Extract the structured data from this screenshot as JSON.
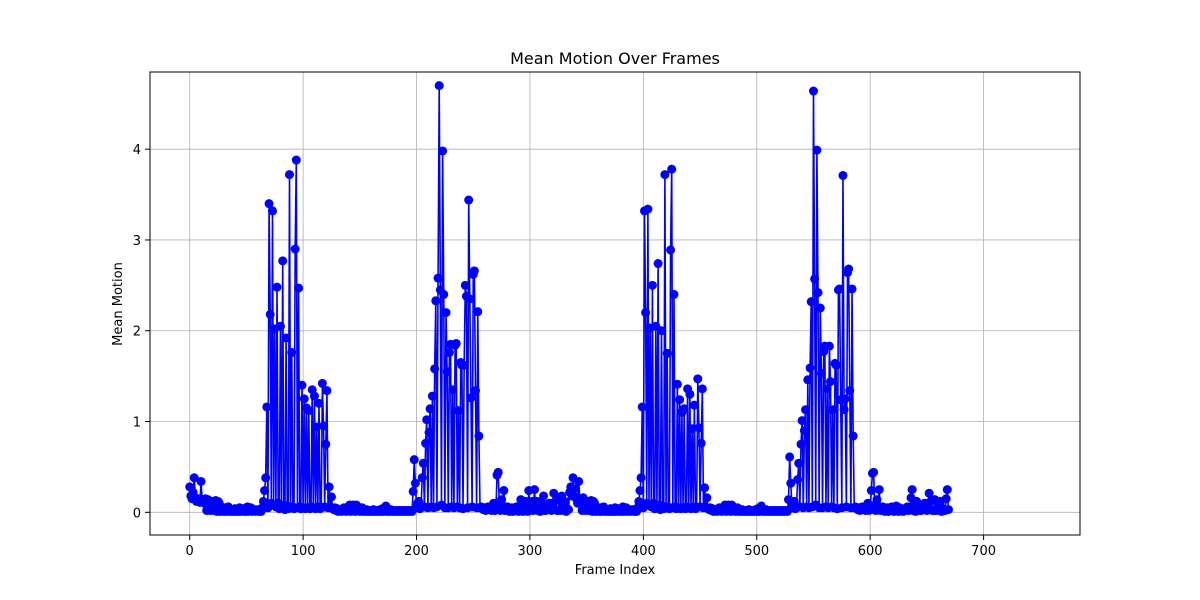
{
  "chart_data": {
    "type": "line",
    "title": "Mean Motion Over Frames",
    "xlabel": "Frame Index",
    "ylabel": "Mean Motion",
    "xlim": [
      -35,
      785
    ],
    "ylim": [
      -0.25,
      4.85
    ],
    "xticks": [
      0,
      100,
      200,
      300,
      400,
      500,
      600,
      700
    ],
    "yticks": [
      0,
      1,
      2,
      3,
      4
    ],
    "grid": true,
    "series_color": "#0000ff",
    "marker": "circle",
    "series": [
      {
        "values": [
          0.28,
          0.18,
          0.15,
          0.22,
          0.38,
          0.16,
          0.12,
          0.15,
          0.13,
          0.11,
          0.34,
          0.14,
          0.12,
          0.1,
          0.15,
          0.02,
          0.14,
          0.13,
          0.02,
          0.1,
          0.12,
          0.02,
          0.11,
          0.13,
          0.01,
          0.12,
          0.1,
          0.01,
          0.02,
          0.03,
          0.01,
          0.05,
          0.01,
          0.02,
          0.06,
          0.01,
          0.02,
          0.01,
          0.03,
          0.01,
          0.04,
          0.01,
          0.02,
          0.01,
          0.05,
          0.01,
          0.02,
          0.04,
          0.01,
          0.02,
          0.01,
          0.06,
          0.01,
          0.02,
          0.05,
          0.01,
          0.02,
          0.03,
          0.01,
          0.02,
          0.03,
          0.01,
          0.02,
          0.01,
          0.05,
          0.12,
          0.24,
          0.38,
          1.16,
          0.05,
          3.4,
          2.18,
          0.1,
          3.32,
          0.08,
          2.02,
          0.06,
          2.48,
          0.1,
          0.04,
          2.05,
          0.05,
          2.77,
          0.08,
          0.03,
          1.92,
          0.07,
          0.04,
          3.72,
          0.05,
          1.76,
          0.06,
          0.04,
          2.9,
          3.88,
          0.05,
          2.47,
          0.06,
          0.04,
          1.4,
          0.05,
          1.25,
          0.04,
          1.15,
          0.05,
          1.12,
          0.04,
          0.06,
          1.35,
          0.05,
          1.28,
          0.04,
          0.94,
          0.06,
          1.2,
          0.04,
          0.05,
          1.42,
          0.95,
          0.06,
          0.75,
          1.34,
          0.05,
          0.28,
          0.06,
          0.17,
          0.04,
          0.03,
          0.05,
          0.02,
          0.04,
          0.01,
          0.03,
          0.02,
          0.01,
          0.02,
          0.05,
          0.02,
          0.01,
          0.04,
          0.02,
          0.08,
          0.01,
          0.03,
          0.08,
          0.02,
          0.01,
          0.08,
          0.02,
          0.04,
          0.01,
          0.02,
          0.05,
          0.01,
          0.02,
          0.01,
          0.03,
          0.01,
          0.02,
          0.01,
          0.02,
          0.01,
          0.03,
          0.01,
          0.02,
          0.01,
          0.02,
          0.01,
          0.03,
          0.01,
          0.04,
          0.01,
          0.02,
          0.07,
          0.01,
          0.02,
          0.01,
          0.03,
          0.01,
          0.02,
          0.01,
          0.02,
          0.01,
          0.02,
          0.01,
          0.02,
          0.01,
          0.02,
          0.01,
          0.02,
          0.01,
          0.02,
          0.01,
          0.02,
          0.01,
          0.02,
          0.01,
          0.23,
          0.58,
          0.32,
          0.05,
          0.1,
          0.12,
          0.04,
          0.05,
          0.38,
          0.54,
          0.06,
          0.76,
          1.02,
          0.05,
          0.88,
          1.14,
          0.06,
          1.28,
          0.05,
          1.58,
          2.33,
          0.06,
          2.58,
          4.7,
          2.45,
          0.08,
          3.98,
          2.4,
          0.05,
          2.2,
          1.55,
          0.05,
          1.76,
          1.85,
          0.06,
          1.35,
          0.05,
          1.84,
          1.86,
          0.06,
          1.12,
          0.05,
          1.65,
          1.62,
          0.04,
          1.62,
          2.5,
          2.38,
          0.05,
          3.44,
          2.35,
          1.26,
          0.06,
          2.62,
          2.66,
          1.34,
          0.05,
          2.21,
          0.84,
          0.05,
          0.06,
          0.04,
          0.03,
          0.05,
          0.02,
          0.04,
          0.06,
          0.03,
          0.05,
          0.02,
          0.04,
          0.1,
          0.02,
          0.03,
          0.41,
          0.44,
          0.08,
          0.02,
          0.14,
          0.05,
          0.24,
          0.02,
          0.05,
          0.06,
          0.03,
          0.01,
          0.02,
          0.05,
          0.01,
          0.04,
          0.02,
          0.06,
          0.03,
          0.01,
          0.02,
          0.14,
          0.03,
          0.01,
          0.05,
          0.12,
          0.02,
          0.01,
          0.24,
          0.02,
          0.04,
          0.12,
          0.02,
          0.25,
          0.06,
          0.12,
          0.02,
          0.08,
          0.01,
          0.12,
          0.05,
          0.18,
          0.02,
          0.02,
          0.07,
          0.04,
          0.1,
          0.05,
          0.02,
          0.1,
          0.21,
          0.03,
          0.13,
          0.02,
          0.02,
          0.14,
          0.02,
          0.18,
          0.05,
          0.02,
          0.12,
          0.01,
          0.04,
          0.03,
          0.22,
          0.28,
          0.18,
          0.38,
          0.26,
          0.17,
          0.15,
          0.1,
          0.34,
          0.14,
          0.12,
          0.02,
          0.16,
          0.13,
          0.02,
          0.1,
          0.12,
          0.02,
          0.11,
          0.13,
          0.01,
          0.12,
          0.1,
          0.01,
          0.02,
          0.03,
          0.01,
          0.05,
          0.01,
          0.02,
          0.06,
          0.01,
          0.02,
          0.01,
          0.03,
          0.01,
          0.04,
          0.01,
          0.02,
          0.01,
          0.05,
          0.01,
          0.02,
          0.04,
          0.01,
          0.02,
          0.01,
          0.06,
          0.01,
          0.02,
          0.05,
          0.01,
          0.02,
          0.03,
          0.01,
          0.02,
          0.03,
          0.01,
          0.02,
          0.01,
          0.05,
          0.12,
          0.24,
          0.38,
          1.16,
          0.05,
          3.32,
          2.2,
          0.1,
          3.34,
          0.08,
          2.03,
          0.06,
          2.5,
          0.1,
          0.04,
          2.05,
          0.05,
          2.74,
          0.08,
          0.03,
          2.0,
          0.07,
          0.04,
          3.72,
          0.05,
          1.75,
          0.06,
          0.04,
          2.89,
          3.78,
          0.05,
          2.4,
          0.06,
          0.04,
          1.41,
          0.05,
          1.24,
          0.04,
          1.1,
          0.05,
          1.14,
          0.04,
          0.06,
          1.36,
          0.05,
          1.3,
          0.04,
          0.92,
          0.06,
          1.18,
          0.04,
          0.05,
          1.47,
          0.93,
          0.06,
          0.76,
          1.36,
          0.05,
          0.27,
          0.06,
          0.16,
          0.04,
          0.03,
          0.05,
          0.02,
          0.04,
          0.01,
          0.03,
          0.02,
          0.01,
          0.02,
          0.05,
          0.02,
          0.01,
          0.04,
          0.02,
          0.08,
          0.01,
          0.03,
          0.08,
          0.02,
          0.01,
          0.08,
          0.02,
          0.04,
          0.01,
          0.02,
          0.05,
          0.01,
          0.02,
          0.01,
          0.03,
          0.01,
          0.02,
          0.01,
          0.02,
          0.01,
          0.03,
          0.01,
          0.02,
          0.01,
          0.02,
          0.01,
          0.03,
          0.01,
          0.04,
          0.01,
          0.02,
          0.07,
          0.01,
          0.02,
          0.01,
          0.03,
          0.01,
          0.02,
          0.01,
          0.02,
          0.01,
          0.02,
          0.01,
          0.02,
          0.01,
          0.02,
          0.01,
          0.02,
          0.01,
          0.02,
          0.01,
          0.02,
          0.01,
          0.02,
          0.01,
          0.14,
          0.61,
          0.32,
          0.05,
          0.1,
          0.12,
          0.04,
          0.05,
          0.36,
          0.54,
          0.06,
          0.75,
          1.01,
          0.05,
          0.9,
          1.13,
          0.06,
          1.46,
          0.05,
          1.59,
          2.32,
          0.06,
          4.64,
          2.57,
          0.08,
          3.99,
          2.42,
          0.05,
          2.25,
          1.53,
          0.05,
          1.77,
          1.83,
          0.06,
          1.36,
          0.05,
          1.83,
          1.44,
          0.06,
          1.13,
          0.05,
          1.64,
          1.62,
          0.04,
          2.45,
          2.46,
          1.24,
          0.05,
          3.71,
          1.13,
          1.25,
          0.06,
          2.64,
          2.68,
          1.34,
          0.05,
          2.46,
          0.84,
          0.05,
          0.06,
          0.04,
          0.03,
          0.05,
          0.02,
          0.04,
          0.06,
          0.03,
          0.05,
          0.02,
          0.04,
          0.1,
          0.02,
          0.03,
          0.24,
          0.43,
          0.44,
          0.08,
          0.02,
          0.14,
          0.05,
          0.25,
          0.02,
          0.05,
          0.06,
          0.03,
          0.01,
          0.02,
          0.05,
          0.01,
          0.04,
          0.02,
          0.06,
          0.03,
          0.01,
          0.02,
          0.07,
          0.03,
          0.01,
          0.05,
          0.04,
          0.02,
          0.01,
          0.04,
          0.02,
          0.04,
          0.06,
          0.02,
          0.05,
          0.16,
          0.25,
          0.02,
          0.08,
          0.01,
          0.12,
          0.05,
          0.06,
          0.02,
          0.02,
          0.07,
          0.04,
          0.1,
          0.05,
          0.02,
          0.1,
          0.21,
          0.03,
          0.13,
          0.02,
          0.02,
          0.14,
          0.02,
          0.11,
          0.05,
          0.02,
          0.12,
          0.01,
          0.04,
          0.03,
          0.02,
          0.15,
          0.25,
          0.03
        ]
      }
    ]
  }
}
